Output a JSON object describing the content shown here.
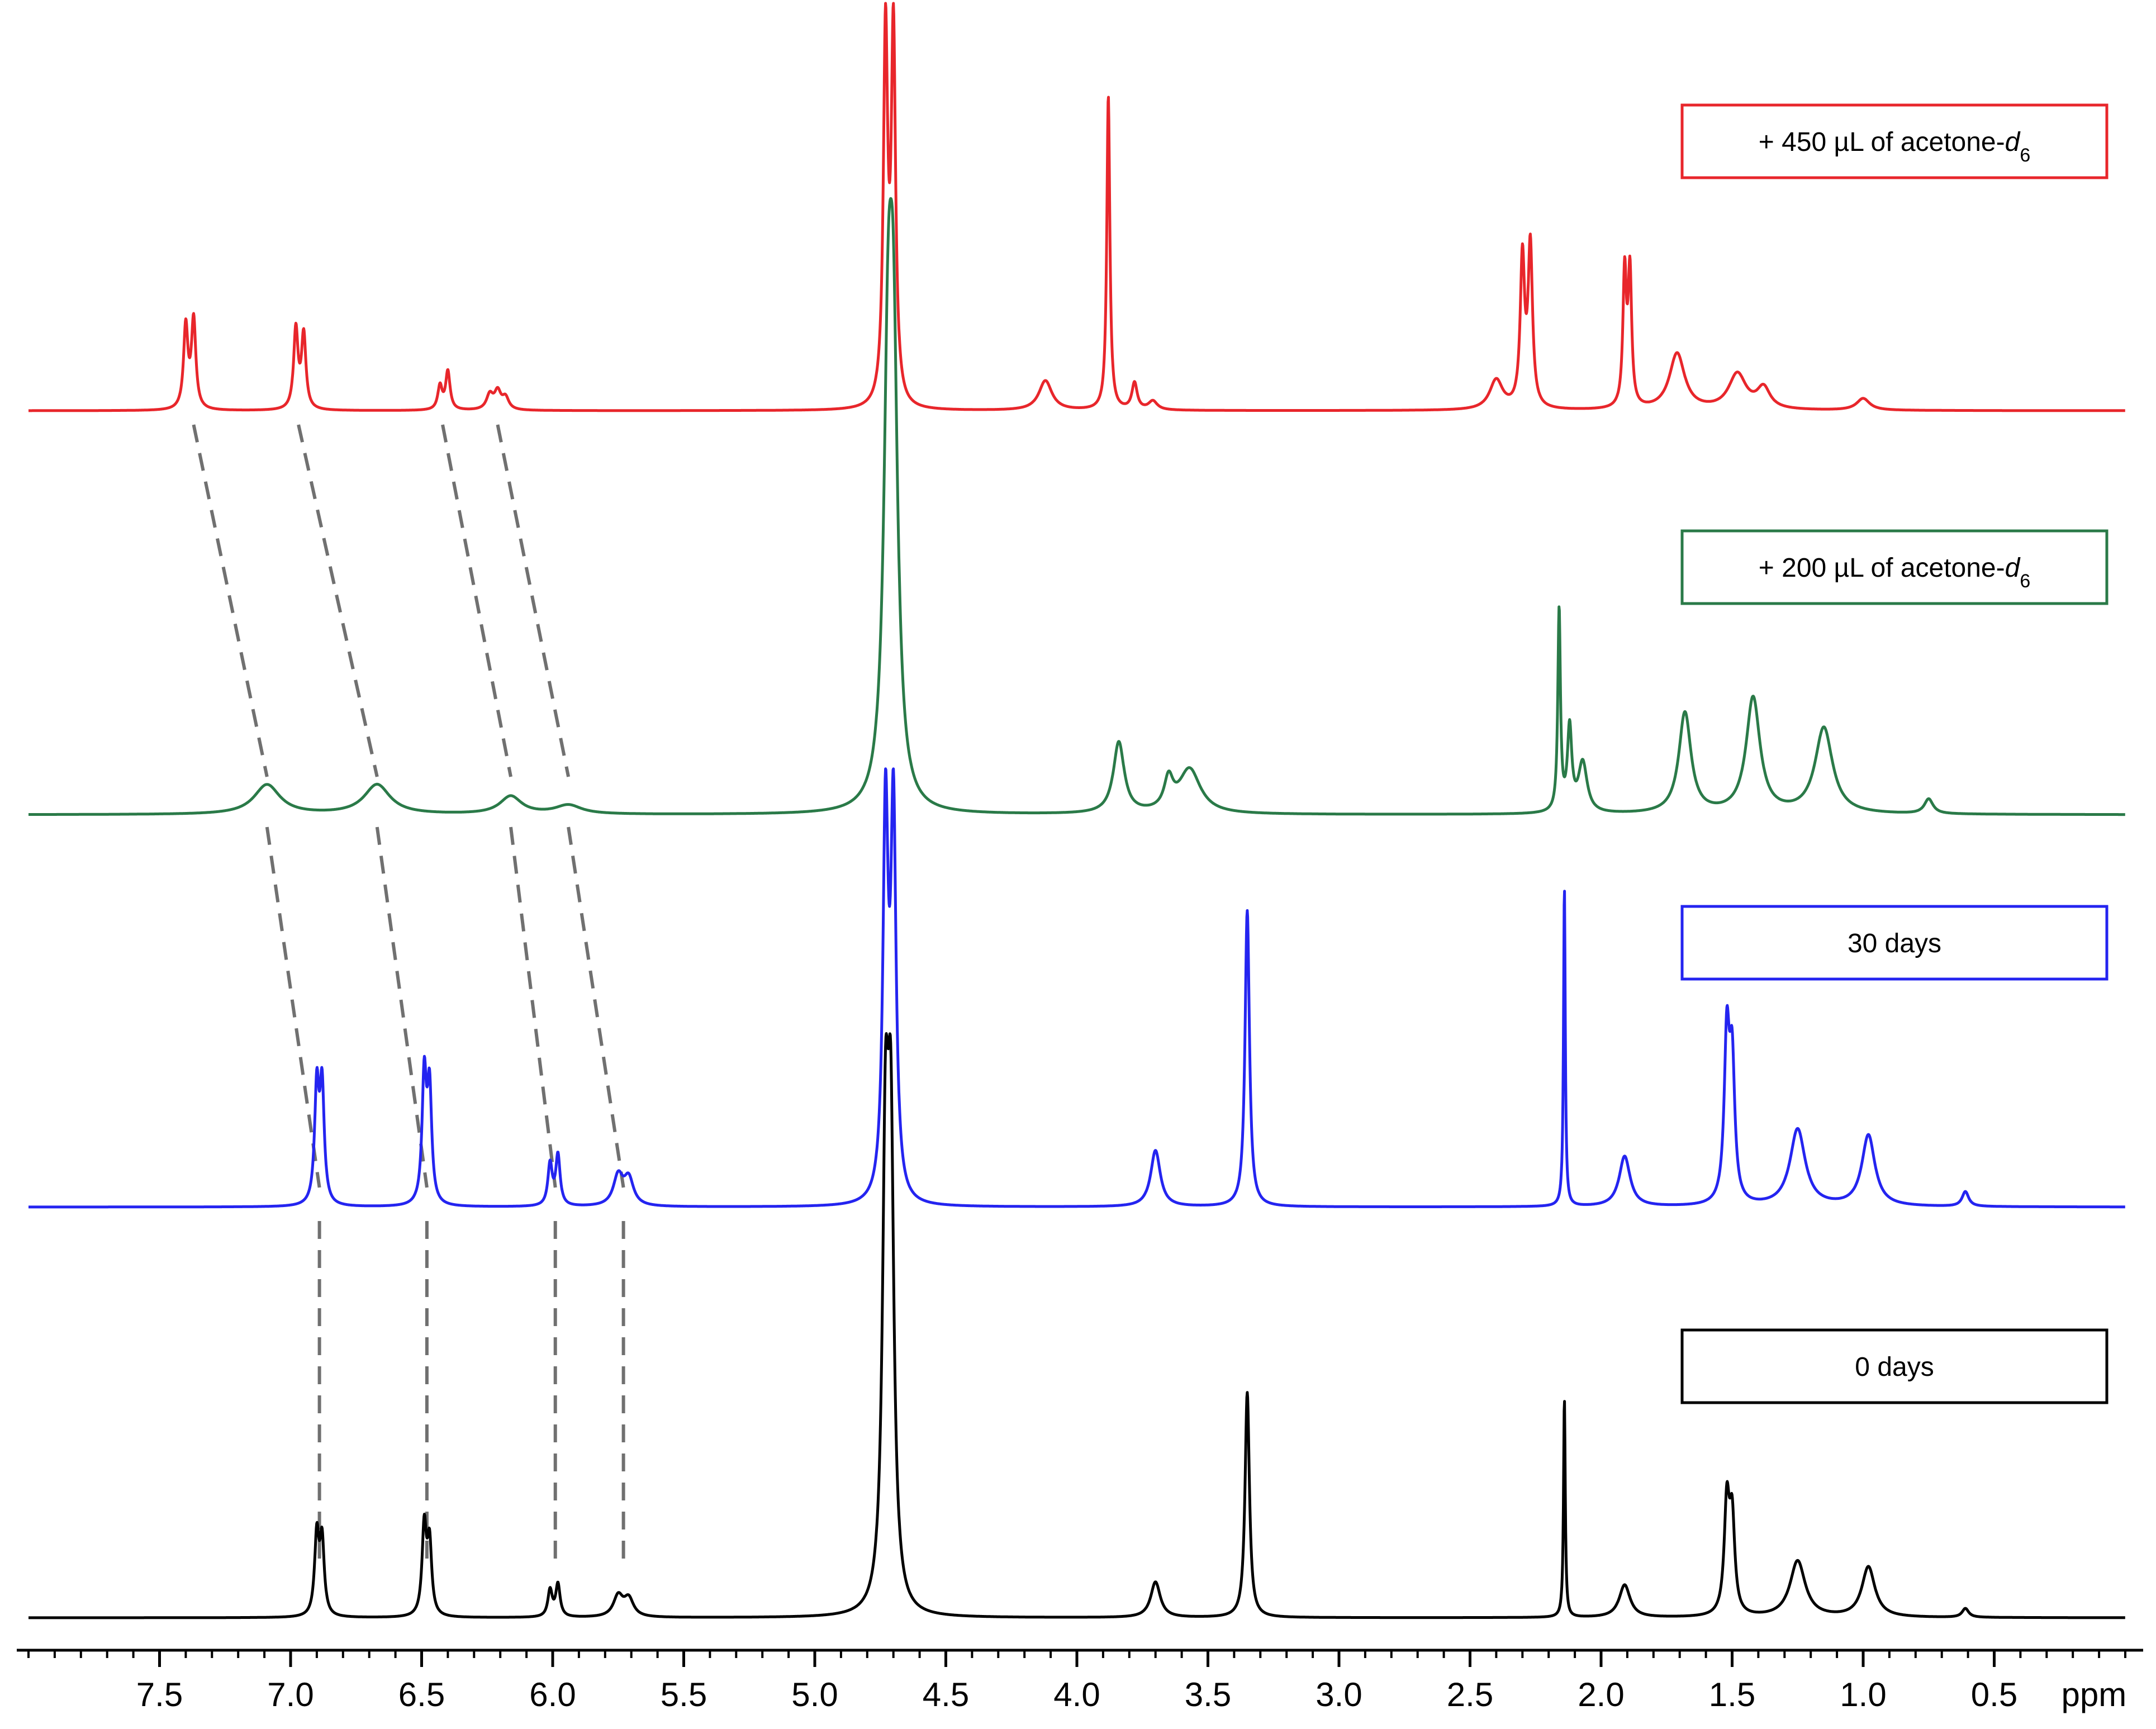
{
  "chart_data": {
    "type": "line",
    "title": "",
    "xlabel": "",
    "ylabel": "",
    "x_unit": "ppm",
    "x_axis_reversed": true,
    "xlim": [
      8.0,
      0.0
    ],
    "x_ticks": [
      "7.5",
      "7.0",
      "6.5",
      "6.0",
      "5.5",
      "5.0",
      "4.5",
      "4.0",
      "3.5",
      "3.0",
      "2.5",
      "2.0",
      "1.5",
      "1.0",
      "0.5"
    ],
    "x_tick_values": [
      7.5,
      7.0,
      6.5,
      6.0,
      5.5,
      5.0,
      4.5,
      4.0,
      3.5,
      3.0,
      2.5,
      2.0,
      1.5,
      1.0,
      0.5
    ],
    "grid": false,
    "legend_placement": "right of each trace",
    "series": [
      {
        "name_parts": [
          "+ 450 µL of acetone-",
          "d",
          "6"
        ],
        "color": "#e8262b",
        "peaks": [
          {
            "ppm": 7.4,
            "height": 0.28,
            "width": 0.01
          },
          {
            "ppm": 7.37,
            "height": 0.3,
            "width": 0.01
          },
          {
            "ppm": 6.98,
            "height": 0.27,
            "width": 0.01
          },
          {
            "ppm": 6.95,
            "height": 0.25,
            "width": 0.01
          },
          {
            "ppm": 6.43,
            "height": 0.08,
            "width": 0.01
          },
          {
            "ppm": 6.4,
            "height": 0.13,
            "width": 0.01
          },
          {
            "ppm": 6.24,
            "height": 0.05,
            "width": 0.015
          },
          {
            "ppm": 6.21,
            "height": 0.06,
            "width": 0.015
          },
          {
            "ppm": 6.18,
            "height": 0.04,
            "width": 0.015
          },
          {
            "ppm": 4.73,
            "height": 1.25,
            "width": 0.01
          },
          {
            "ppm": 4.7,
            "height": 1.25,
            "width": 0.01
          },
          {
            "ppm": 4.12,
            "height": 0.1,
            "width": 0.03
          },
          {
            "ppm": 3.88,
            "height": 1.06,
            "width": 0.007
          },
          {
            "ppm": 3.78,
            "height": 0.09,
            "width": 0.012
          },
          {
            "ppm": 3.71,
            "height": 0.03,
            "width": 0.02
          },
          {
            "ppm": 2.4,
            "height": 0.1,
            "width": 0.03
          },
          {
            "ppm": 2.3,
            "height": 0.5,
            "width": 0.01
          },
          {
            "ppm": 2.27,
            "height": 0.54,
            "width": 0.01
          },
          {
            "ppm": 1.91,
            "height": 0.45,
            "width": 0.008
          },
          {
            "ppm": 1.89,
            "height": 0.45,
            "width": 0.008
          },
          {
            "ppm": 1.71,
            "height": 0.19,
            "width": 0.035
          },
          {
            "ppm": 1.48,
            "height": 0.12,
            "width": 0.04
          },
          {
            "ppm": 1.38,
            "height": 0.07,
            "width": 0.03
          },
          {
            "ppm": 1.0,
            "height": 0.04,
            "width": 0.03
          }
        ]
      },
      {
        "name_parts": [
          "+ 200 µL of acetone-",
          "d",
          "6"
        ],
        "color": "#2a7a48",
        "peaks": [
          {
            "ppm": 7.09,
            "height": 0.1,
            "width": 0.06
          },
          {
            "ppm": 6.67,
            "height": 0.1,
            "width": 0.06
          },
          {
            "ppm": 6.16,
            "height": 0.06,
            "width": 0.05
          },
          {
            "ppm": 5.94,
            "height": 0.03,
            "width": 0.06
          },
          {
            "ppm": 4.72,
            "height": 1.3,
            "width": 0.02
          },
          {
            "ppm": 4.7,
            "height": 1.3,
            "width": 0.02
          },
          {
            "ppm": 3.84,
            "height": 0.24,
            "width": 0.025
          },
          {
            "ppm": 3.65,
            "height": 0.1,
            "width": 0.02
          },
          {
            "ppm": 3.57,
            "height": 0.15,
            "width": 0.05
          },
          {
            "ppm": 2.16,
            "height": 0.68,
            "width": 0.006
          },
          {
            "ppm": 2.12,
            "height": 0.28,
            "width": 0.01
          },
          {
            "ppm": 2.07,
            "height": 0.17,
            "width": 0.02
          },
          {
            "ppm": 1.68,
            "height": 0.34,
            "width": 0.028
          },
          {
            "ppm": 1.42,
            "height": 0.39,
            "width": 0.032
          },
          {
            "ppm": 1.15,
            "height": 0.29,
            "width": 0.04
          },
          {
            "ppm": 0.75,
            "height": 0.05,
            "width": 0.02
          }
        ]
      },
      {
        "name_parts": [
          "30 days"
        ],
        "color": "#2424f0",
        "peaks": [
          {
            "ppm": 6.9,
            "height": 0.39,
            "width": 0.01
          },
          {
            "ppm": 6.88,
            "height": 0.39,
            "width": 0.01
          },
          {
            "ppm": 6.49,
            "height": 0.43,
            "width": 0.01
          },
          {
            "ppm": 6.47,
            "height": 0.38,
            "width": 0.01
          },
          {
            "ppm": 6.01,
            "height": 0.14,
            "width": 0.01
          },
          {
            "ppm": 5.98,
            "height": 0.17,
            "width": 0.01
          },
          {
            "ppm": 5.75,
            "height": 0.1,
            "width": 0.022
          },
          {
            "ppm": 5.71,
            "height": 0.09,
            "width": 0.022
          },
          {
            "ppm": 4.73,
            "height": 1.3,
            "width": 0.012
          },
          {
            "ppm": 4.7,
            "height": 1.3,
            "width": 0.012
          },
          {
            "ppm": 3.7,
            "height": 0.19,
            "width": 0.022
          },
          {
            "ppm": 3.35,
            "height": 1.0,
            "width": 0.01
          },
          {
            "ppm": 2.14,
            "height": 1.08,
            "width": 0.004
          },
          {
            "ppm": 1.91,
            "height": 0.17,
            "width": 0.025
          },
          {
            "ppm": 1.52,
            "height": 0.55,
            "width": 0.012
          },
          {
            "ppm": 1.5,
            "height": 0.45,
            "width": 0.012
          },
          {
            "ppm": 1.25,
            "height": 0.26,
            "width": 0.035
          },
          {
            "ppm": 0.98,
            "height": 0.24,
            "width": 0.03
          },
          {
            "ppm": 0.61,
            "height": 0.05,
            "width": 0.015
          }
        ]
      },
      {
        "name_parts": [
          "0 days"
        ],
        "color": "#000000",
        "peaks": [
          {
            "ppm": 6.9,
            "height": 0.27,
            "width": 0.01
          },
          {
            "ppm": 6.88,
            "height": 0.25,
            "width": 0.01
          },
          {
            "ppm": 6.49,
            "height": 0.3,
            "width": 0.01
          },
          {
            "ppm": 6.47,
            "height": 0.24,
            "width": 0.01
          },
          {
            "ppm": 6.01,
            "height": 0.09,
            "width": 0.01
          },
          {
            "ppm": 5.98,
            "height": 0.11,
            "width": 0.01
          },
          {
            "ppm": 5.75,
            "height": 0.07,
            "width": 0.022
          },
          {
            "ppm": 5.71,
            "height": 0.06,
            "width": 0.022
          },
          {
            "ppm": 4.73,
            "height": 1.45,
            "width": 0.014
          },
          {
            "ppm": 4.71,
            "height": 1.45,
            "width": 0.014
          },
          {
            "ppm": 3.7,
            "height": 0.12,
            "width": 0.022
          },
          {
            "ppm": 3.35,
            "height": 0.76,
            "width": 0.01
          },
          {
            "ppm": 2.14,
            "height": 0.74,
            "width": 0.004
          },
          {
            "ppm": 1.91,
            "height": 0.11,
            "width": 0.025
          },
          {
            "ppm": 1.52,
            "height": 0.37,
            "width": 0.012
          },
          {
            "ppm": 1.5,
            "height": 0.31,
            "width": 0.012
          },
          {
            "ppm": 1.25,
            "height": 0.19,
            "width": 0.035
          },
          {
            "ppm": 0.98,
            "height": 0.17,
            "width": 0.03
          },
          {
            "ppm": 0.61,
            "height": 0.03,
            "width": 0.015
          }
        ]
      }
    ],
    "correlation_lines": [
      {
        "from_series": 0,
        "to_series": 1,
        "pairs": [
          [
            7.37,
            7.09
          ],
          [
            6.97,
            6.67
          ],
          [
            6.42,
            6.16
          ],
          [
            6.21,
            5.94
          ]
        ]
      },
      {
        "from_series": 1,
        "to_series": 2,
        "pairs": [
          [
            7.09,
            6.89
          ],
          [
            6.67,
            6.48
          ],
          [
            6.16,
            5.99
          ],
          [
            5.94,
            5.73
          ]
        ]
      },
      {
        "from_series": 2,
        "to_series": 3,
        "pairs": [
          [
            6.89,
            6.89
          ],
          [
            6.48,
            6.48
          ],
          [
            5.99,
            5.99
          ],
          [
            5.73,
            5.73
          ]
        ]
      }
    ]
  }
}
